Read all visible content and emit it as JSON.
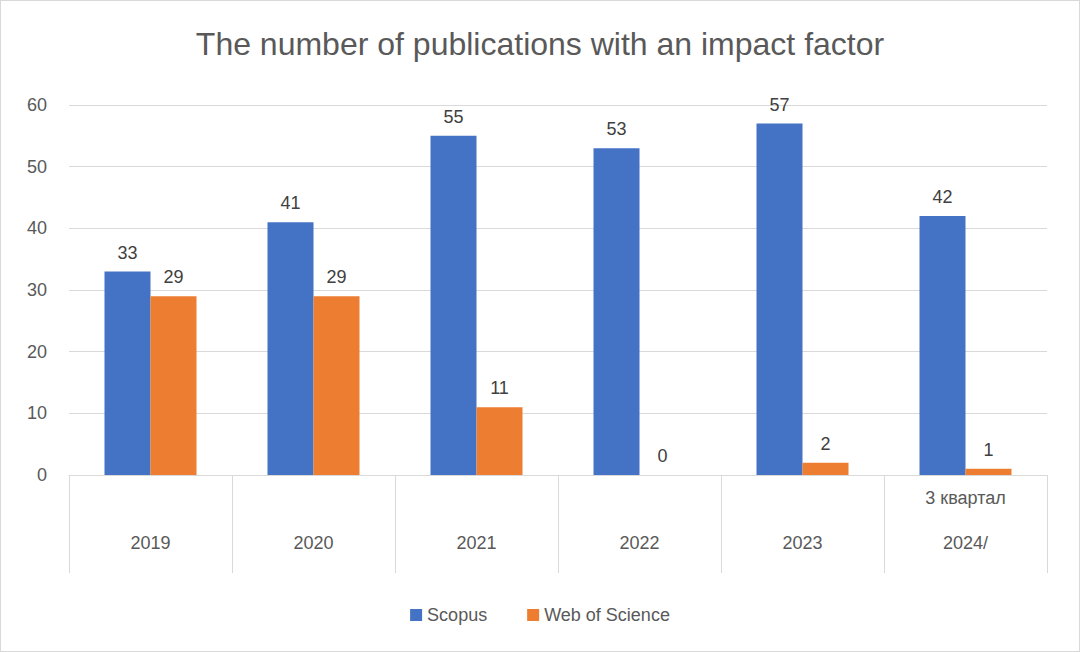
{
  "chart_data": {
    "type": "bar",
    "title": "The number of publications with an impact factor",
    "categories": [
      "2019",
      "2020",
      "2021",
      "2022",
      "2023",
      "3 квартал\n2024/"
    ],
    "series": [
      {
        "name": "Scopus",
        "color": "#4472c4",
        "values": [
          33,
          41,
          55,
          53,
          57,
          42
        ]
      },
      {
        "name": "Web of Science",
        "color": "#ed7d31",
        "values": [
          29,
          29,
          11,
          0,
          2,
          1
        ]
      }
    ],
    "ylim": [
      0,
      60
    ],
    "yticks": [
      0,
      10,
      20,
      30,
      40,
      50,
      60
    ],
    "grid": true,
    "legend": "bottom",
    "data_labels": true
  }
}
